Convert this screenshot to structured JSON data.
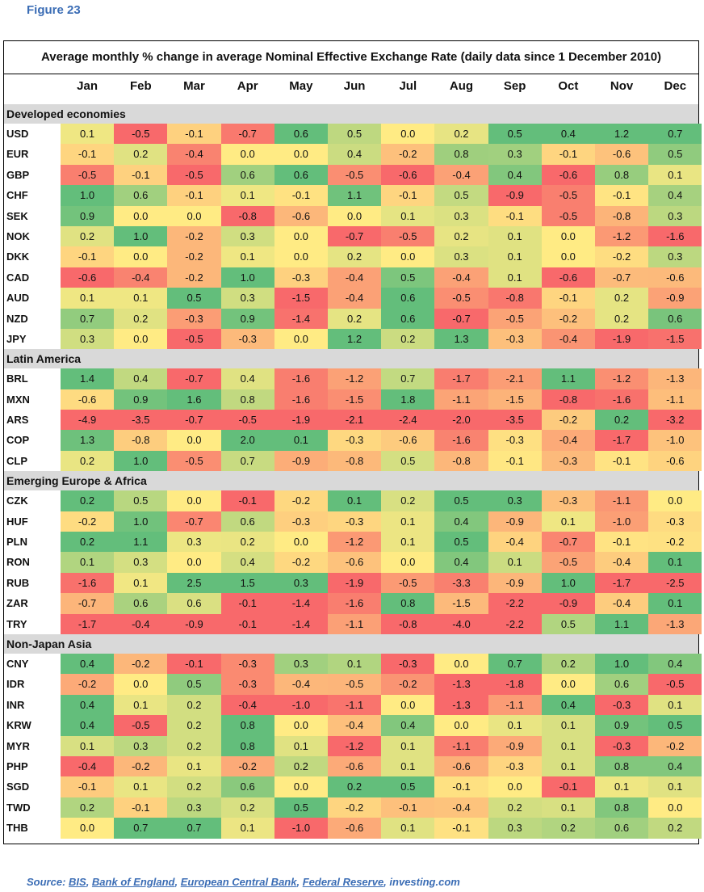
{
  "figure_label": "Figure 23",
  "title": "Average monthly % change in average Nominal Effective Exchange Rate (daily data since 1 December 2010)",
  "months": [
    "Jan",
    "Feb",
    "Mar",
    "Apr",
    "May",
    "Jun",
    "Jul",
    "Aug",
    "Sep",
    "Oct",
    "Nov",
    "Dec"
  ],
  "colors": {
    "negative": "#f8696b",
    "neutral": "#ffeb84",
    "positive": "#63be7b",
    "section_bg": "#d9d9d9",
    "accent": "#3b6db5"
  },
  "chart_data": {
    "type": "table",
    "sections": [
      {
        "name": "Developed economies",
        "rows": [
          {
            "code": "USD",
            "values": [
              "0.1",
              "-0.5",
              "-0.1",
              "-0.7",
              "0.6",
              "0.5",
              "0.0",
              "0.2",
              "0.5",
              "0.4",
              "1.2",
              "0.7"
            ]
          },
          {
            "code": "EUR",
            "values": [
              "-0.1",
              "0.2",
              "-0.4",
              "0.0",
              "0.0",
              "0.4",
              "-0.2",
              "0.8",
              "0.3",
              "-0.1",
              "-0.6",
              "0.5"
            ]
          },
          {
            "code": "GBP",
            "values": [
              "-0.5",
              "-0.1",
              "-0.5",
              "0.6",
              "0.6",
              "-0.5",
              "-0.6",
              "-0.4",
              "0.4",
              "-0.6",
              "0.8",
              "0.1"
            ]
          },
          {
            "code": "CHF",
            "values": [
              "1.0",
              "0.6",
              "-0.1",
              "0.1",
              "-0.1",
              "1.1",
              "-0.1",
              "0.5",
              "-0.9",
              "-0.5",
              "-0.1",
              "0.4"
            ]
          },
          {
            "code": "SEK",
            "values": [
              "0.9",
              "0.0",
              "0.0",
              "-0.8",
              "-0.6",
              "0.0",
              "0.1",
              "0.3",
              "-0.1",
              "-0.5",
              "-0.8",
              "0.3"
            ]
          },
          {
            "code": "NOK",
            "values": [
              "0.2",
              "1.0",
              "-0.2",
              "0.3",
              "0.0",
              "-0.7",
              "-0.5",
              "0.2",
              "0.1",
              "0.0",
              "-1.2",
              "-1.6"
            ]
          },
          {
            "code": "DKK",
            "values": [
              "-0.1",
              "0.0",
              "-0.2",
              "0.1",
              "0.0",
              "0.2",
              "0.0",
              "0.3",
              "0.1",
              "0.0",
              "-0.2",
              "0.3"
            ]
          },
          {
            "code": "CAD",
            "values": [
              "-0.6",
              "-0.4",
              "-0.2",
              "1.0",
              "-0.3",
              "-0.4",
              "0.5",
              "-0.4",
              "0.1",
              "-0.6",
              "-0.7",
              "-0.6"
            ]
          },
          {
            "code": "AUD",
            "values": [
              "0.1",
              "0.1",
              "0.5",
              "0.3",
              "-1.5",
              "-0.4",
              "0.6",
              "-0.5",
              "-0.8",
              "-0.1",
              "0.2",
              "-0.9"
            ]
          },
          {
            "code": "NZD",
            "values": [
              "0.7",
              "0.2",
              "-0.3",
              "0.9",
              "-1.4",
              "0.2",
              "0.6",
              "-0.7",
              "-0.5",
              "-0.2",
              "0.2",
              "0.6"
            ]
          },
          {
            "code": "JPY",
            "values": [
              "0.3",
              "0.0",
              "-0.5",
              "-0.3",
              "0.0",
              "1.2",
              "0.2",
              "1.3",
              "-0.3",
              "-0.4",
              "-1.9",
              "-1.5"
            ]
          }
        ]
      },
      {
        "name": "Latin America",
        "rows": [
          {
            "code": "BRL",
            "values": [
              "1.4",
              "0.4",
              "-0.7",
              "0.4",
              "-1.6",
              "-1.2",
              "0.7",
              "-1.7",
              "-2.1",
              "1.1",
              "-1.2",
              "-1.3"
            ]
          },
          {
            "code": "MXN",
            "values": [
              "-0.6",
              "0.9",
              "1.6",
              "0.8",
              "-1.6",
              "-1.5",
              "1.8",
              "-1.1",
              "-1.5",
              "-0.8",
              "-1.6",
              "-1.1"
            ]
          },
          {
            "code": "ARS",
            "values": [
              "-4.9",
              "-3.5",
              "-0.7",
              "-0.5",
              "-1.9",
              "-2.1",
              "-2.4",
              "-2.0",
              "-3.5",
              "-0.2",
              "0.2",
              "-3.2"
            ]
          },
          {
            "code": "COP",
            "values": [
              "1.3",
              "-0.8",
              "0.0",
              "2.0",
              "0.1",
              "-0.3",
              "-0.6",
              "-1.6",
              "-0.3",
              "-0.4",
              "-1.7",
              "-1.0"
            ]
          },
          {
            "code": "CLP",
            "values": [
              "0.2",
              "1.0",
              "-0.5",
              "0.7",
              "-0.9",
              "-0.8",
              "0.5",
              "-0.8",
              "-0.1",
              "-0.3",
              "-0.1",
              "-0.6"
            ]
          }
        ]
      },
      {
        "name": "Emerging Europe & Africa",
        "rows": [
          {
            "code": "CZK",
            "values": [
              "0.2",
              "0.5",
              "0.0",
              "-0.1",
              "-0.2",
              "0.1",
              "0.2",
              "0.5",
              "0.3",
              "-0.3",
              "-1.1",
              "0.0"
            ]
          },
          {
            "code": "HUF",
            "values": [
              "-0.2",
              "1.0",
              "-0.7",
              "0.6",
              "-0.3",
              "-0.3",
              "0.1",
              "0.4",
              "-0.9",
              "0.1",
              "-1.0",
              "-0.3"
            ]
          },
          {
            "code": "PLN",
            "values": [
              "0.2",
              "1.1",
              "0.3",
              "0.2",
              "0.0",
              "-1.2",
              "0.1",
              "0.5",
              "-0.4",
              "-0.7",
              "-0.1",
              "-0.2"
            ]
          },
          {
            "code": "RON",
            "values": [
              "0.1",
              "0.3",
              "0.0",
              "0.4",
              "-0.2",
              "-0.6",
              "0.0",
              "0.4",
              "0.1",
              "-0.5",
              "-0.4",
              "0.1"
            ]
          },
          {
            "code": "RUB",
            "values": [
              "-1.6",
              "0.1",
              "2.5",
              "1.5",
              "0.3",
              "-1.9",
              "-0.5",
              "-3.3",
              "-0.9",
              "1.0",
              "-1.7",
              "-2.5"
            ]
          },
          {
            "code": "ZAR",
            "values": [
              "-0.7",
              "0.6",
              "0.6",
              "-0.1",
              "-1.4",
              "-1.6",
              "0.8",
              "-1.5",
              "-2.2",
              "-0.9",
              "-0.4",
              "0.1"
            ]
          },
          {
            "code": "TRY",
            "values": [
              "-1.7",
              "-0.4",
              "-0.9",
              "-0.1",
              "-1.4",
              "-1.1",
              "-0.8",
              "-4.0",
              "-2.2",
              "0.5",
              "1.1",
              "-1.3"
            ]
          }
        ]
      },
      {
        "name": "Non-Japan Asia",
        "rows": [
          {
            "code": "CNY",
            "values": [
              "0.4",
              "-0.2",
              "-0.1",
              "-0.3",
              "0.3",
              "0.1",
              "-0.3",
              "0.0",
              "0.7",
              "0.2",
              "1.0",
              "0.4"
            ]
          },
          {
            "code": "IDR",
            "values": [
              "-0.2",
              "0.0",
              "0.5",
              "-0.3",
              "-0.4",
              "-0.5",
              "-0.2",
              "-1.3",
              "-1.8",
              "0.0",
              "0.6",
              "-0.5"
            ]
          },
          {
            "code": "INR",
            "values": [
              "0.4",
              "0.1",
              "0.2",
              "-0.4",
              "-1.0",
              "-1.1",
              "0.0",
              "-1.3",
              "-1.1",
              "0.4",
              "-0.3",
              "0.1"
            ]
          },
          {
            "code": "KRW",
            "values": [
              "0.4",
              "-0.5",
              "0.2",
              "0.8",
              "0.0",
              "-0.4",
              "0.4",
              "0.0",
              "0.1",
              "0.1",
              "0.9",
              "0.5"
            ]
          },
          {
            "code": "MYR",
            "values": [
              "0.1",
              "0.3",
              "0.2",
              "0.8",
              "0.1",
              "-1.2",
              "0.1",
              "-1.1",
              "-0.9",
              "0.1",
              "-0.3",
              "-0.2"
            ]
          },
          {
            "code": "PHP",
            "values": [
              "-0.4",
              "-0.2",
              "0.1",
              "-0.2",
              "0.2",
              "-0.6",
              "0.1",
              "-0.6",
              "-0.3",
              "0.1",
              "0.8",
              "0.4"
            ]
          },
          {
            "code": "SGD",
            "values": [
              "-0.1",
              "0.1",
              "0.2",
              "0.6",
              "0.0",
              "0.2",
              "0.5",
              "-0.1",
              "0.0",
              "-0.1",
              "0.1",
              "0.1"
            ]
          },
          {
            "code": "TWD",
            "values": [
              "0.2",
              "-0.1",
              "0.3",
              "0.2",
              "0.5",
              "-0.2",
              "-0.1",
              "-0.4",
              "0.2",
              "0.1",
              "0.8",
              "0.0"
            ]
          },
          {
            "code": "THB",
            "values": [
              "0.0",
              "0.7",
              "0.7",
              "0.1",
              "-1.0",
              "-0.6",
              "0.1",
              "-0.1",
              "0.3",
              "0.2",
              "0.6",
              "0.2"
            ]
          }
        ]
      }
    ]
  },
  "source": {
    "prefix": "Source: ",
    "items": [
      "BIS",
      "Bank of England",
      "European Central Bank",
      "Federal Reserve",
      "investing.com"
    ]
  }
}
